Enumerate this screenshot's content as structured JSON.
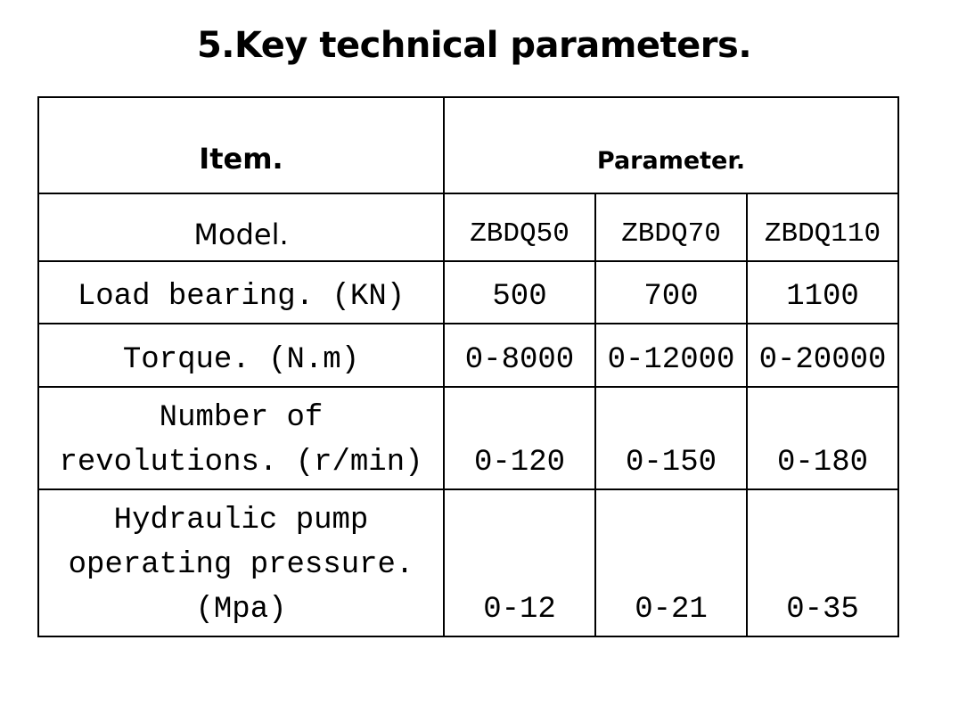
{
  "title": "5.Key technical parameters.",
  "table": {
    "header_item": "Item.",
    "header_parameter": "Parameter.",
    "rows": [
      {
        "label": "Model.",
        "values": [
          "ZBDQ50",
          "ZBDQ70",
          "ZBDQ110"
        ]
      },
      {
        "label": "Load bearing. (KN)",
        "values": [
          "500",
          "700",
          "1100"
        ]
      },
      {
        "label": "Torque. (N.m)",
        "values": [
          "0-8000",
          "0-12000",
          "0-20000"
        ]
      },
      {
        "label": "Number of revolutions. (r/min)",
        "values": [
          "0-120",
          "0-150",
          "0-180"
        ]
      },
      {
        "label": "Hydraulic pump operating pressure. (Mpa)",
        "values": [
          "0-12",
          "0-21",
          "0-35"
        ]
      }
    ]
  }
}
